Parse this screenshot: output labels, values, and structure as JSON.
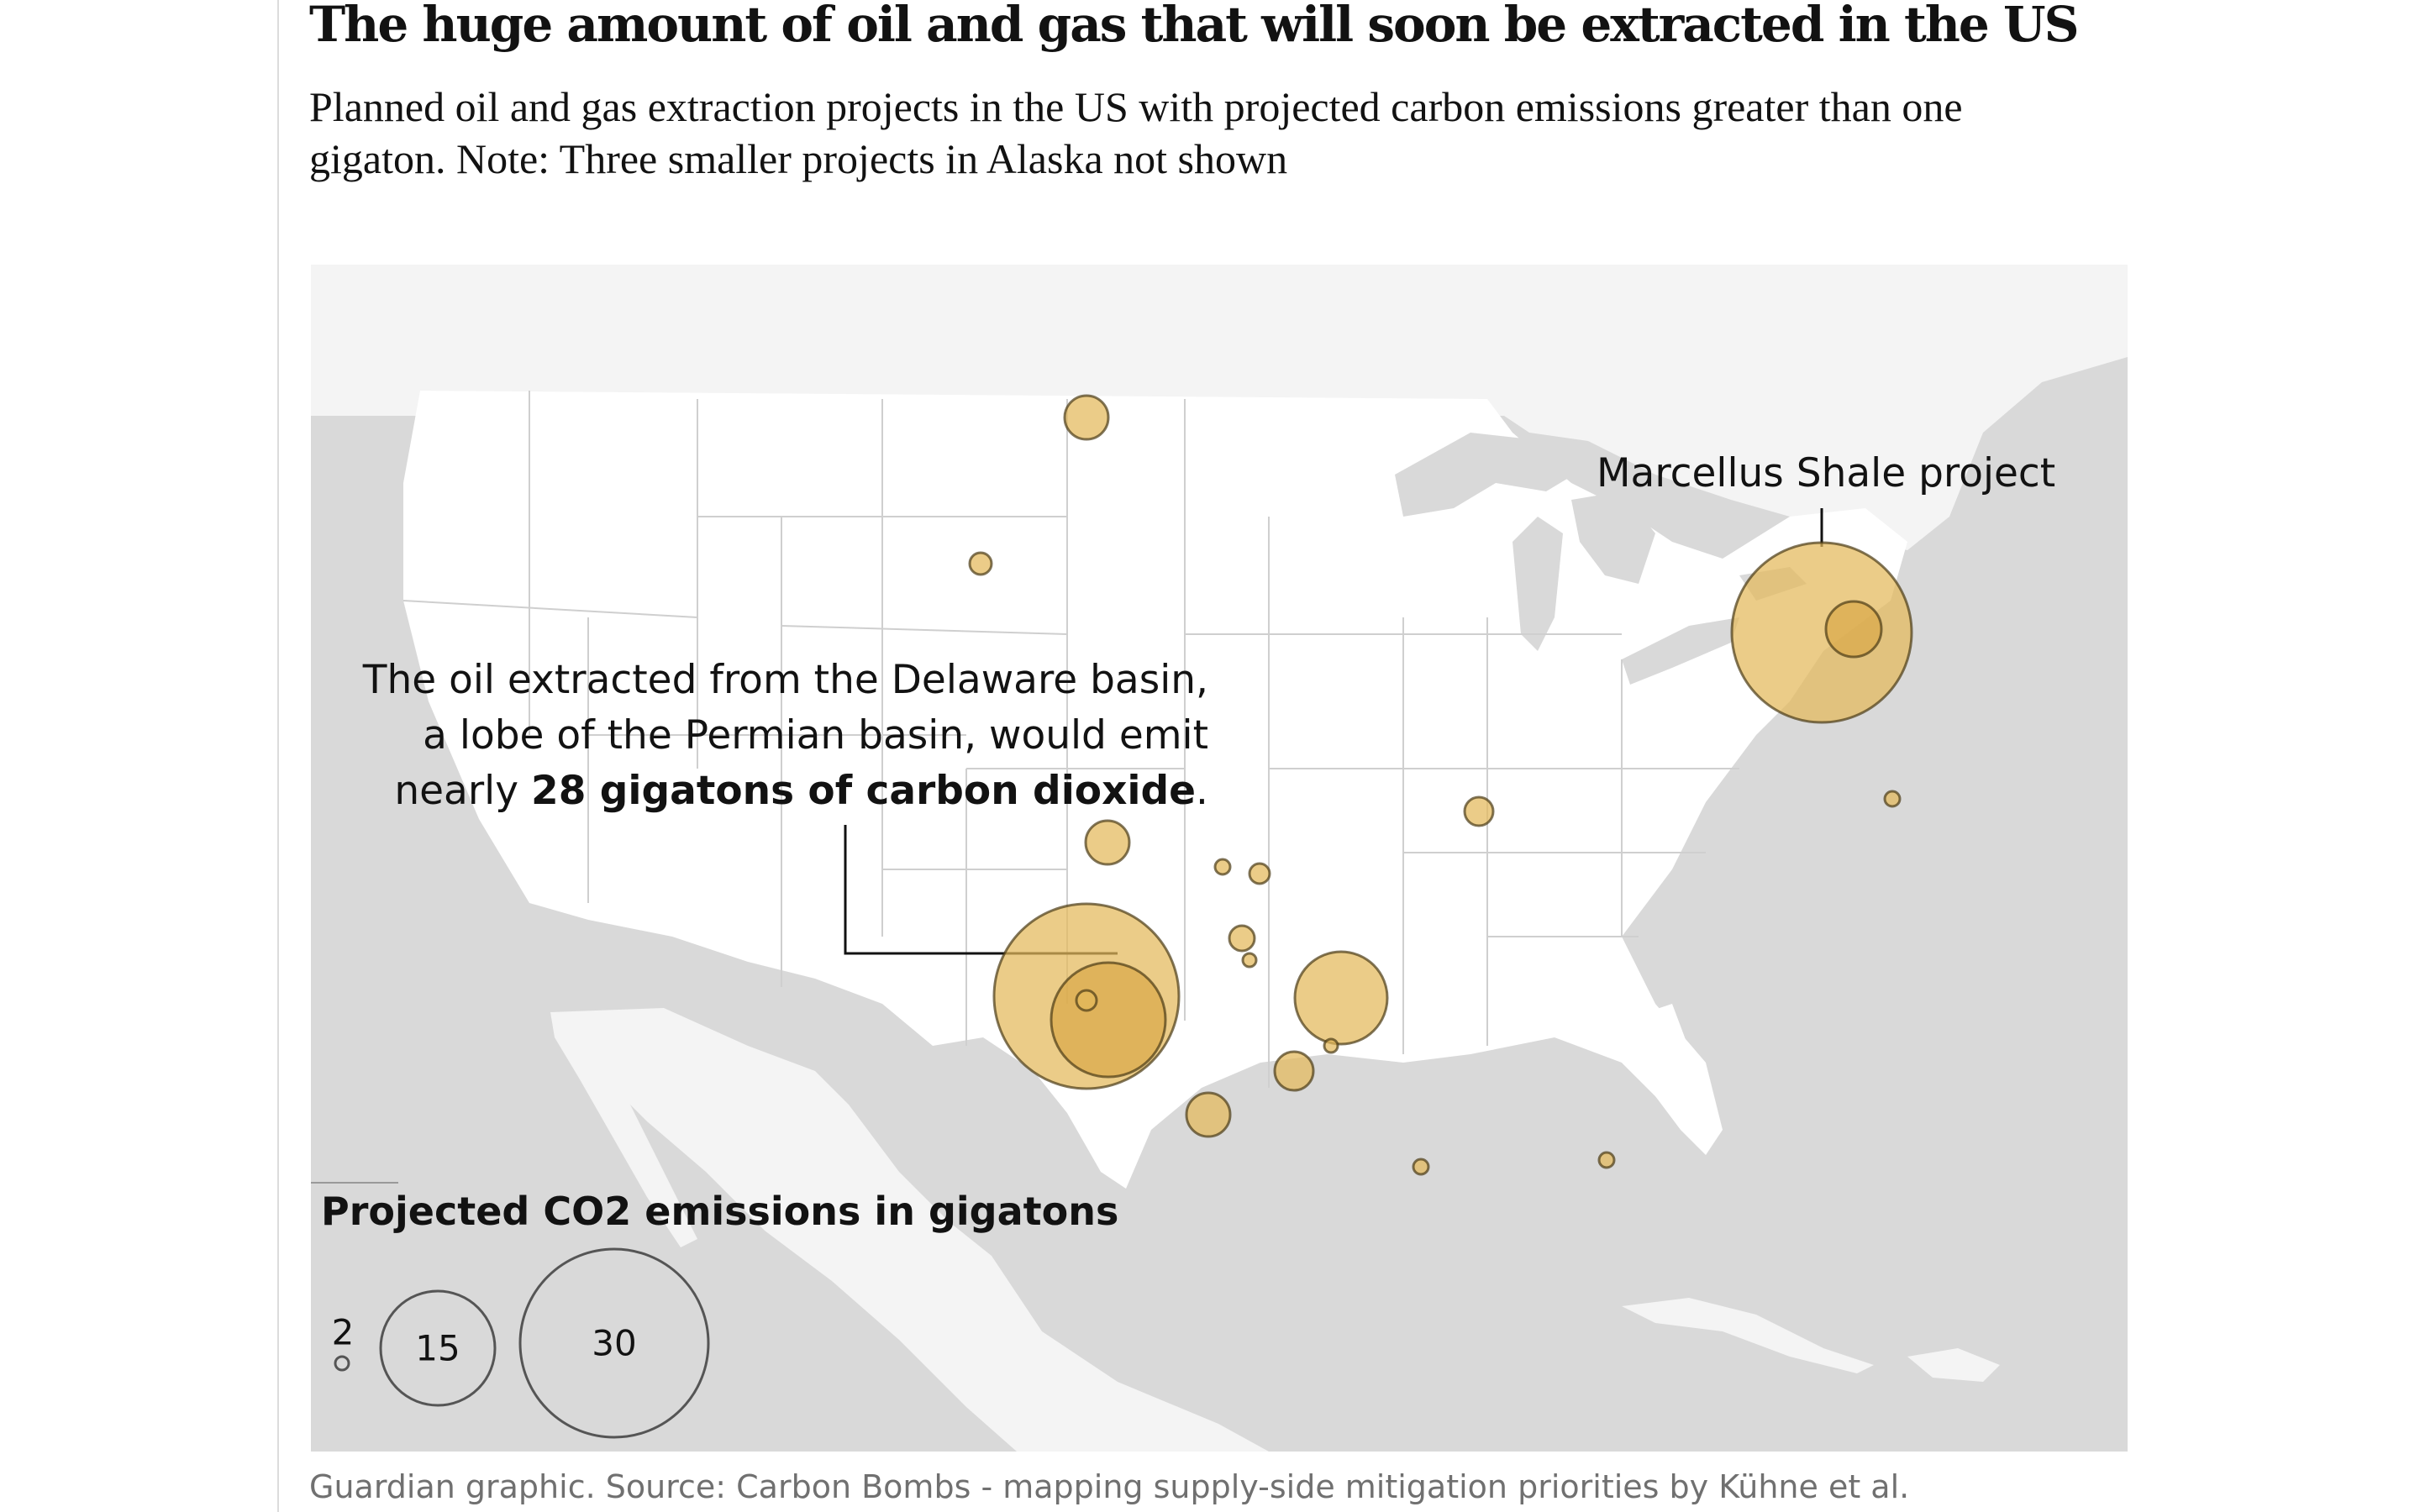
{
  "header": {
    "title": "The huge amount of oil and gas that will soon be extracted in the US",
    "subtitle": "Planned oil and gas extraction projects in the US with projected carbon emissions greater than one gigaton. Note: Three smaller projects in Alaska not shown"
  },
  "annotations": {
    "marcellus": "Marcellus Shale project",
    "delaware_line1": "The oil extracted from the Delaware basin,",
    "delaware_line2": "a lobe of the Permian basin, would emit",
    "delaware_line3_pre": "nearly",
    "delaware_line3_bold": "28 gigatons of carbon dioxide",
    "delaware_line3_post": "."
  },
  "legend": {
    "title": "Projected CO2 emissions in gigatons",
    "sizes": [
      "2",
      "15",
      "30"
    ]
  },
  "source": "Guardian graphic. Source: Carbon Bombs - mapping supply-side mitigation priorities by Kühne et al.",
  "colors": {
    "bubble_fill": "#e3b85a",
    "bubble_stroke": "#4a3b16",
    "land": "#f4f4f4",
    "water": "#d9d9d9",
    "us_land": "#ffffff"
  }
}
